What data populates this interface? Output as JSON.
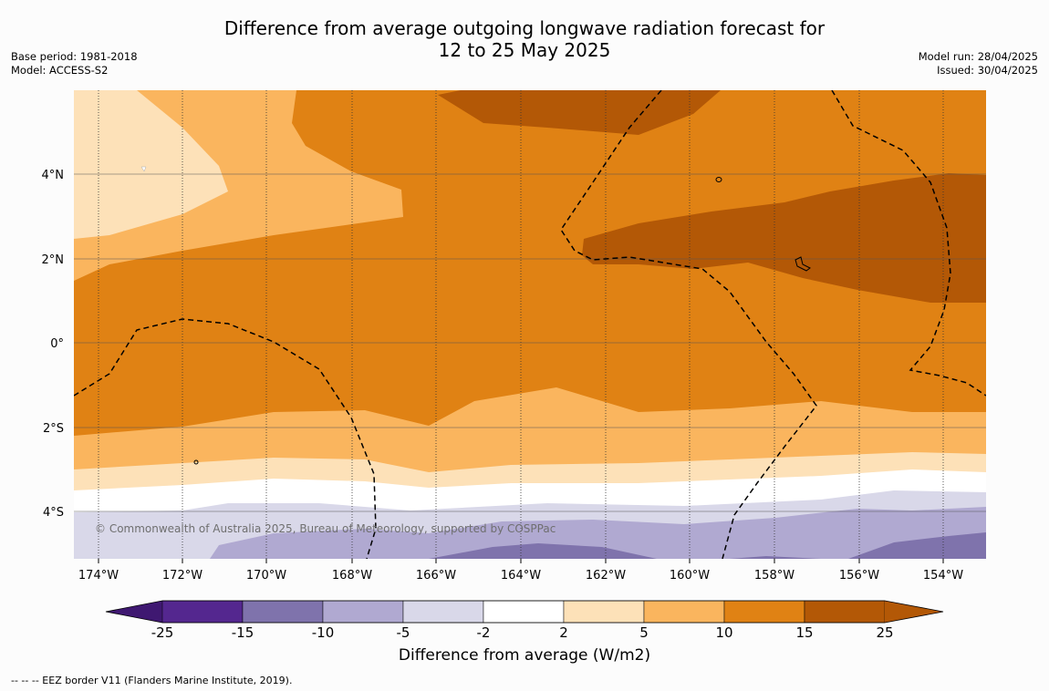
{
  "title_line1": "Difference from average outgoing longwave radiation forecast for",
  "title_line2": "12 to 25 May 2025",
  "base_period": "Base period: 1981-2018",
  "model": "Model: ACCESS-S2",
  "model_run": "Model run: 28/04/2025",
  "issued": "Issued: 30/04/2025",
  "credit": "© Commonwealth of Australia 2025, Bureau of Meteorology, supported by COSPPac",
  "footer": "-- -- -- EEZ border V11 (Flanders Marine Institute, 2019).",
  "colorbar": {
    "label": "Difference from average (W/m2)",
    "ticks": [
      "-25",
      "-15",
      "-10",
      "-5",
      "-2",
      "2",
      "5",
      "10",
      "15",
      "25"
    ],
    "colors": [
      "#3f1871",
      "#54278f",
      "#7f73ac",
      "#b0a9d1",
      "#d9d8e9",
      "#ffffff",
      "#fde1b8",
      "#fab55e",
      "#e08214",
      "#b35806"
    ]
  },
  "map": {
    "lon_labels": [
      "174°W",
      "172°W",
      "170°W",
      "168°W",
      "166°W",
      "164°W",
      "162°W",
      "160°W",
      "158°W",
      "156°W",
      "154°W"
    ],
    "lat_labels": [
      "4°N",
      "2°N",
      "0°",
      "2°S",
      "4°S"
    ]
  }
}
